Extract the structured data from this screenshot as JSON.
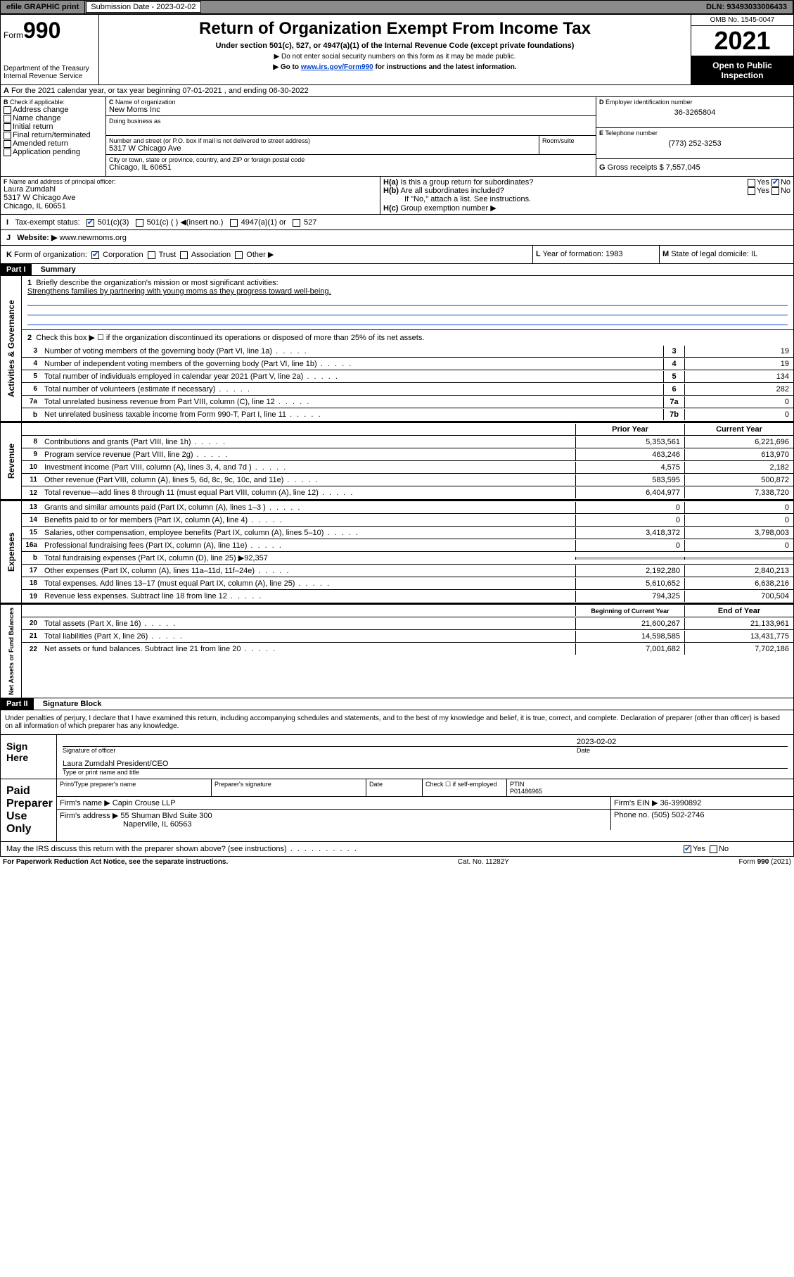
{
  "topbar": {
    "efile": "efile GRAPHIC print",
    "submission": "Submission Date - 2023-02-02",
    "dln": "DLN: 93493033006433"
  },
  "header": {
    "form_label": "Form",
    "form_num": "990",
    "dept": "Department of the Treasury",
    "irs": "Internal Revenue Service",
    "title": "Return of Organization Exempt From Income Tax",
    "sub1": "Under section 501(c), 527, or 4947(a)(1) of the Internal Revenue Code (except private foundations)",
    "sub2": "▶ Do not enter social security numbers on this form as it may be made public.",
    "sub3_a": "▶ Go to ",
    "sub3_link": "www.irs.gov/Form990",
    "sub3_b": " for instructions and the latest information.",
    "omb": "OMB No. 1545-0047",
    "year": "2021",
    "inspect": "Open to Public Inspection"
  },
  "periodA": "For the 2021 calendar year, or tax year beginning 07-01-2021    , and ending 06-30-2022",
  "boxB": {
    "title": "Check if applicable:",
    "opts": [
      "Address change",
      "Name change",
      "Initial return",
      "Final return/terminated",
      "Amended return",
      "Application pending"
    ]
  },
  "boxC": {
    "lbl": "Name of organization",
    "name": "New Moms Inc",
    "dba_lbl": "Doing business as",
    "addr_lbl": "Number and street (or P.O. box if mail is not delivered to street address)",
    "room_lbl": "Room/suite",
    "addr": "5317 W Chicago Ave",
    "city_lbl": "City or town, state or province, country, and ZIP or foreign postal code",
    "city": "Chicago, IL  60651"
  },
  "boxD": {
    "lbl": "Employer identification number",
    "val": "36-3265804"
  },
  "boxE": {
    "lbl": "Telephone number",
    "val": "(773) 252-3253"
  },
  "boxG": {
    "lbl": "Gross receipts $",
    "val": "7,557,045"
  },
  "boxF": {
    "lbl": "Name and address of principal officer:",
    "name": "Laura Zumdahl",
    "addr1": "5317 W Chicago Ave",
    "addr2": "Chicago, IL  60651"
  },
  "boxH": {
    "a": "Is this a group return for subordinates?",
    "b": "Are all subordinates included?",
    "note": "If \"No,\" attach a list. See instructions.",
    "c": "Group exemption number ▶"
  },
  "boxI": {
    "lbl": "Tax-exempt status:",
    "o1": "501(c)(3)",
    "o2": "501(c) (  ) ◀(insert no.)",
    "o3": "4947(a)(1) or",
    "o4": "527"
  },
  "boxJ": {
    "lbl": "Website: ▶",
    "val": "www.newmoms.org"
  },
  "boxK": {
    "lbl": "Form of organization:",
    "o1": "Corporation",
    "o2": "Trust",
    "o3": "Association",
    "o4": "Other ▶"
  },
  "boxL": {
    "lbl": "Year of formation:",
    "val": "1983"
  },
  "boxM": {
    "lbl": "State of legal domicile:",
    "val": "IL"
  },
  "part1": {
    "hdr": "Part I",
    "title": "Summary",
    "l1_lbl": "Briefly describe the organization's mission or most significant activities:",
    "l1_val": "Strengthens families by partnering with young moms as they progress toward well-being.",
    "l2": "Check this box ▶ ☐  if the organization discontinued its operations or disposed of more than 25% of its net assets.",
    "lines_gov": [
      {
        "n": "3",
        "t": "Number of voting members of the governing body (Part VI, line 1a)",
        "b": "3",
        "v": "19"
      },
      {
        "n": "4",
        "t": "Number of independent voting members of the governing body (Part VI, line 1b)",
        "b": "4",
        "v": "19"
      },
      {
        "n": "5",
        "t": "Total number of individuals employed in calendar year 2021 (Part V, line 2a)",
        "b": "5",
        "v": "134"
      },
      {
        "n": "6",
        "t": "Total number of volunteers (estimate if necessary)",
        "b": "6",
        "v": "282"
      },
      {
        "n": "7a",
        "t": "Total unrelated business revenue from Part VIII, column (C), line 12",
        "b": "7a",
        "v": "0"
      },
      {
        "n": "b",
        "t": "Net unrelated business taxable income from Form 990-T, Part I, line 11",
        "b": "7b",
        "v": "0"
      }
    ],
    "col_prior": "Prior Year",
    "col_curr": "Current Year",
    "rev": [
      {
        "n": "8",
        "t": "Contributions and grants (Part VIII, line 1h)",
        "p": "5,353,561",
        "c": "6,221,696"
      },
      {
        "n": "9",
        "t": "Program service revenue (Part VIII, line 2g)",
        "p": "463,246",
        "c": "613,970"
      },
      {
        "n": "10",
        "t": "Investment income (Part VIII, column (A), lines 3, 4, and 7d )",
        "p": "4,575",
        "c": "2,182"
      },
      {
        "n": "11",
        "t": "Other revenue (Part VIII, column (A), lines 5, 6d, 8c, 9c, 10c, and 11e)",
        "p": "583,595",
        "c": "500,872"
      },
      {
        "n": "12",
        "t": "Total revenue—add lines 8 through 11 (must equal Part VIII, column (A), line 12)",
        "p": "6,404,977",
        "c": "7,338,720"
      }
    ],
    "exp": [
      {
        "n": "13",
        "t": "Grants and similar amounts paid (Part IX, column (A), lines 1–3 )",
        "p": "0",
        "c": "0"
      },
      {
        "n": "14",
        "t": "Benefits paid to or for members (Part IX, column (A), line 4)",
        "p": "0",
        "c": "0"
      },
      {
        "n": "15",
        "t": "Salaries, other compensation, employee benefits (Part IX, column (A), lines 5–10)",
        "p": "3,418,372",
        "c": "3,798,003"
      },
      {
        "n": "16a",
        "t": "Professional fundraising fees (Part IX, column (A), line 11e)",
        "p": "0",
        "c": "0"
      },
      {
        "n": "b",
        "t": "Total fundraising expenses (Part IX, column (D), line 25) ▶92,357",
        "p": "",
        "c": "",
        "gray": true
      },
      {
        "n": "17",
        "t": "Other expenses (Part IX, column (A), lines 11a–11d, 11f–24e)",
        "p": "2,192,280",
        "c": "2,840,213"
      },
      {
        "n": "18",
        "t": "Total expenses. Add lines 13–17 (must equal Part IX, column (A), line 25)",
        "p": "5,610,652",
        "c": "6,638,216"
      },
      {
        "n": "19",
        "t": "Revenue less expenses. Subtract line 18 from line 12",
        "p": "794,325",
        "c": "700,504"
      }
    ],
    "col_beg": "Beginning of Current Year",
    "col_end": "End of Year",
    "net": [
      {
        "n": "20",
        "t": "Total assets (Part X, line 16)",
        "p": "21,600,267",
        "c": "21,133,961"
      },
      {
        "n": "21",
        "t": "Total liabilities (Part X, line 26)",
        "p": "14,598,585",
        "c": "13,431,775"
      },
      {
        "n": "22",
        "t": "Net assets or fund balances. Subtract line 21 from line 20",
        "p": "7,001,682",
        "c": "7,702,186"
      }
    ]
  },
  "part2": {
    "hdr": "Part II",
    "title": "Signature Block",
    "decl": "Under penalties of perjury, I declare that I have examined this return, including accompanying schedules and statements, and to the best of my knowledge and belief, it is true, correct, and complete. Declaration of preparer (other than officer) is based on all information of which preparer has any knowledge.",
    "sign_here": "Sign Here",
    "sig_officer": "Signature of officer",
    "sig_date_lbl": "Date",
    "sig_date": "2023-02-02",
    "sig_name": "Laura Zumdahl  President/CEO",
    "sig_name_lbl": "Type or print name and title",
    "paid": "Paid Preparer Use Only",
    "prep_name_lbl": "Print/Type preparer's name",
    "prep_sig_lbl": "Preparer's signature",
    "prep_date_lbl": "Date",
    "prep_check": "Check ☐ if self-employed",
    "ptin_lbl": "PTIN",
    "ptin": "P01486965",
    "firm_name_lbl": "Firm's name    ▶",
    "firm_name": "Capin Crouse LLP",
    "firm_ein_lbl": "Firm's EIN ▶",
    "firm_ein": "36-3990892",
    "firm_addr_lbl": "Firm's address ▶",
    "firm_addr1": "55 Shuman Blvd Suite 300",
    "firm_addr2": "Naperville, IL  60563",
    "phone_lbl": "Phone no.",
    "phone": "(505) 502-2746",
    "discuss": "May the IRS discuss this return with the preparer shown above? (see instructions)"
  },
  "footer": {
    "l": "For Paperwork Reduction Act Notice, see the separate instructions.",
    "c": "Cat. No. 11282Y",
    "r": "Form 990 (2021)"
  },
  "labels": {
    "yes": "Yes",
    "no": "No",
    "sect_gov": "Activities & Governance",
    "sect_rev": "Revenue",
    "sect_exp": "Expenses",
    "sect_net": "Net Assets or Fund Balances"
  }
}
